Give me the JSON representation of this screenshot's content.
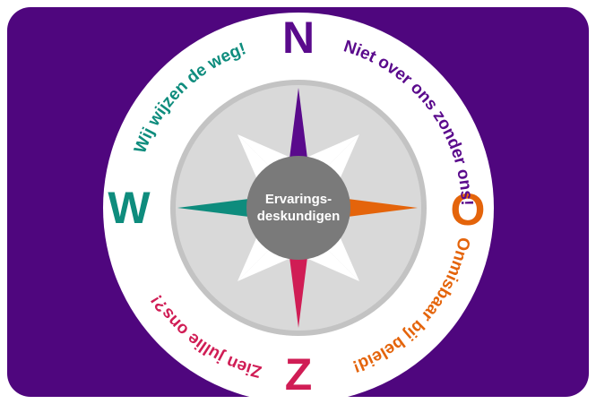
{
  "compass": {
    "directions": {
      "north": "N",
      "east": "O",
      "south": "Z",
      "west": "W"
    },
    "slogans": {
      "north_east": "Niet over ons zonder ons!",
      "south_east": "Onmisbaar bij beleid!",
      "south_west": "Zien jullie ons?!",
      "north_west": "Wij wijzen de weg!"
    },
    "center": [
      "Ervarings-",
      "deskundigen"
    ]
  }
}
